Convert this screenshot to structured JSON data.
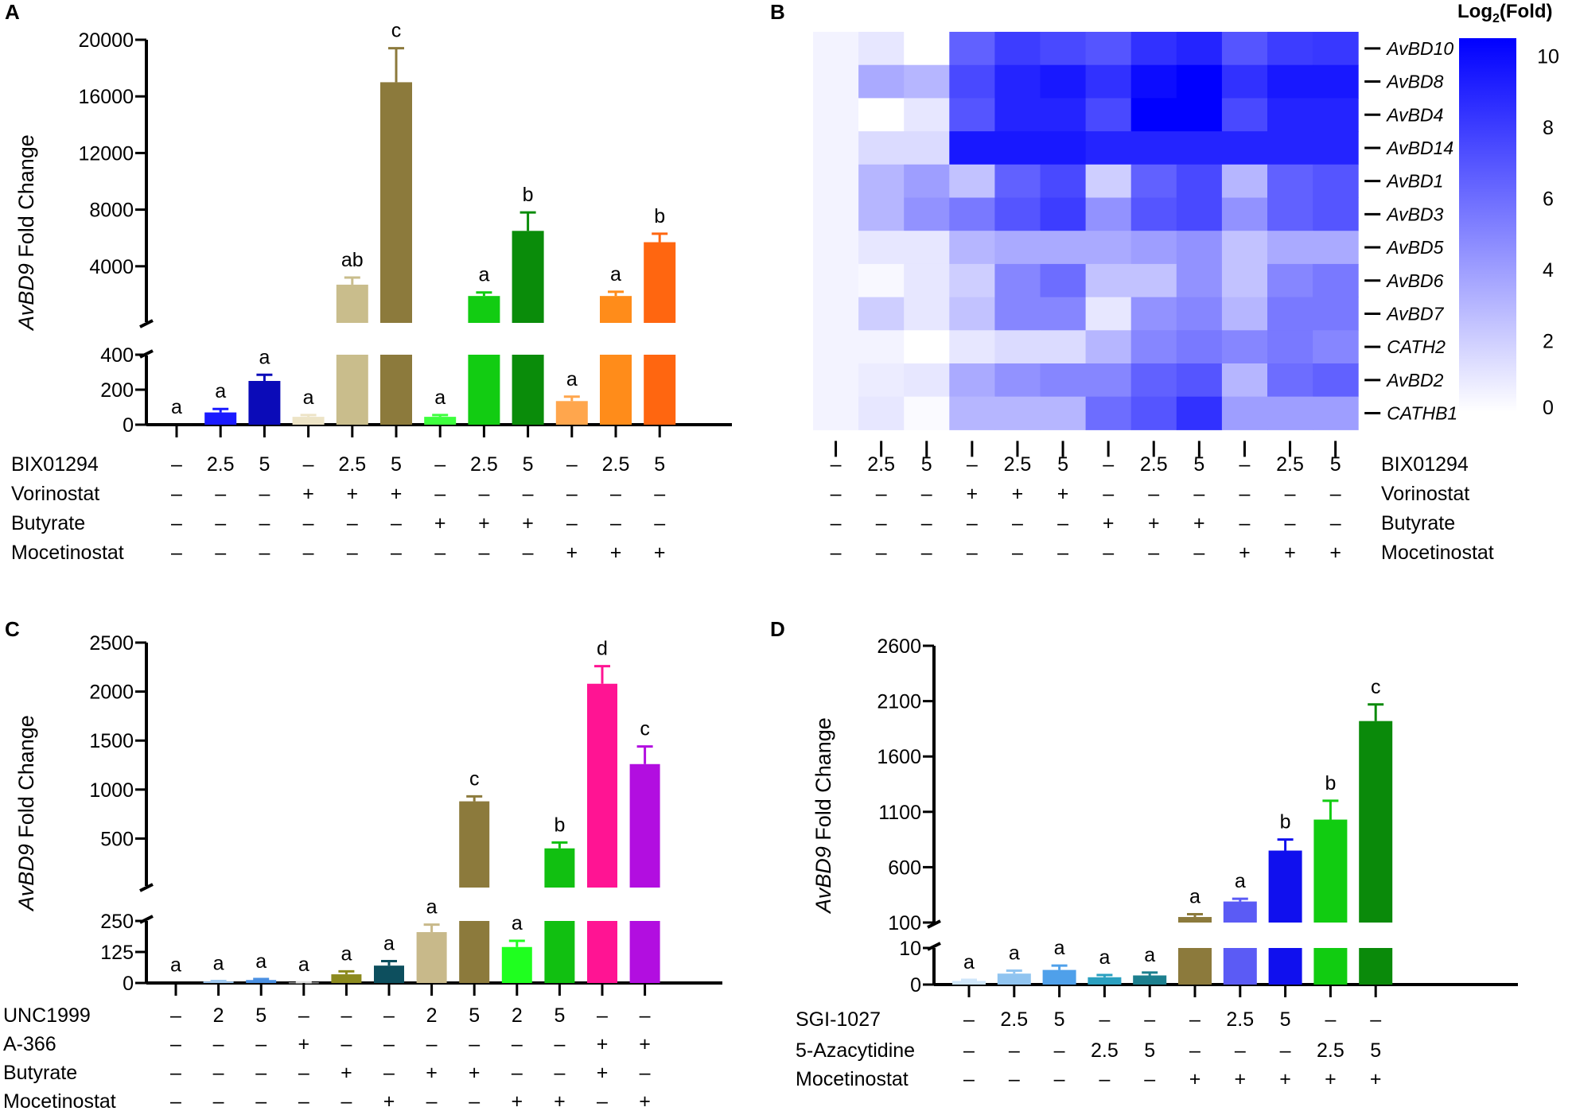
{
  "panel_labels": {
    "a": "A",
    "b": "B",
    "c": "C",
    "d": "D"
  },
  "chart_data": [
    {
      "panel": "A",
      "type": "bar",
      "ylabel_italic": "AvBD9",
      "ylabel_rest": " Fold Change",
      "axis_break": true,
      "lower_ylim": [
        0,
        400
      ],
      "lower_ticks": [
        "0",
        "200",
        "400"
      ],
      "lower_tick_values": [
        0,
        200,
        400
      ],
      "upper_ylim": [
        0,
        20000
      ],
      "upper_ticks": [
        "4000",
        "8000",
        "12000",
        "16000",
        "20000"
      ],
      "upper_tick_values": [
        4000,
        8000,
        12000,
        16000,
        20000
      ],
      "values": [
        1,
        70,
        250,
        45,
        2700,
        17000,
        45,
        1900,
        6500,
        135,
        1900,
        5700
      ],
      "errors": [
        0,
        20,
        35,
        10,
        500,
        2400,
        10,
        250,
        1300,
        25,
        300,
        600
      ],
      "colors": [
        "#111111",
        "#1a1aff",
        "#0b0bb8",
        "#ede4c6",
        "#c9bd8c",
        "#8c7a3c",
        "#3dff3d",
        "#12cc12",
        "#0a8c0a",
        "#ffa64d",
        "#ff8c1a",
        "#ff6610"
      ],
      "significance": [
        "a",
        "a",
        "a",
        "a",
        "ab",
        "c",
        "a",
        "a",
        "b",
        "a",
        "a",
        "b"
      ],
      "treatments": [
        {
          "name": "BIX01294",
          "values": [
            "–",
            "2.5",
            "5",
            "–",
            "2.5",
            "5",
            "–",
            "2.5",
            "5",
            "–",
            "2.5",
            "5"
          ]
        },
        {
          "name": "Vorinostat",
          "values": [
            "–",
            "–",
            "–",
            "+",
            "+",
            "+",
            "–",
            "–",
            "–",
            "–",
            "–",
            "–"
          ]
        },
        {
          "name": "Butyrate",
          "values": [
            "–",
            "–",
            "–",
            "–",
            "–",
            "–",
            "+",
            "+",
            "+",
            "–",
            "–",
            "–"
          ]
        },
        {
          "name": "Mocetinostat",
          "values": [
            "–",
            "–",
            "–",
            "–",
            "–",
            "–",
            "–",
            "–",
            "–",
            "+",
            "+",
            "+"
          ]
        }
      ]
    },
    {
      "panel": "B",
      "type": "heatmap",
      "colorbar_title": "Log",
      "colorbar_sub": "2",
      "colorbar_title_end": "(Fold)",
      "colorbar_ticks": [
        "0",
        "2",
        "4",
        "6",
        "8",
        "10"
      ],
      "colorbar_tick_values": [
        0,
        2,
        4,
        6,
        8,
        10
      ],
      "vmin": 0,
      "vmax": 10.5,
      "rows": [
        "AvBD10",
        "AvBD8",
        "AvBD4",
        "AvBD14",
        "AvBD1",
        "AvBD3",
        "AvBD5",
        "AvBD6",
        "AvBD7",
        "CATH2",
        "AvBD2",
        "CATHB1"
      ],
      "matrix": [
        [
          0.5,
          1.0,
          0.0,
          6.5,
          8.0,
          7.5,
          7.0,
          8.5,
          9.0,
          7.0,
          8.0,
          8.2
        ],
        [
          0.5,
          3.5,
          3.0,
          7.5,
          9.0,
          9.5,
          8.5,
          10.0,
          10.5,
          8.5,
          9.5,
          9.5
        ],
        [
          0.5,
          0.0,
          1.0,
          7.0,
          9.0,
          9.0,
          7.5,
          10.5,
          10.5,
          7.5,
          9.0,
          9.0
        ],
        [
          0.5,
          1.5,
          1.5,
          9.5,
          9.5,
          9.5,
          9.0,
          9.0,
          9.0,
          9.0,
          9.0,
          9.0
        ],
        [
          0.5,
          3.0,
          4.0,
          2.5,
          6.5,
          7.5,
          2.0,
          6.5,
          7.5,
          3.0,
          6.5,
          7.0
        ],
        [
          0.5,
          3.0,
          4.5,
          5.5,
          7.0,
          8.0,
          4.5,
          7.0,
          7.5,
          4.5,
          6.5,
          7.0
        ],
        [
          0.5,
          1.0,
          1.0,
          3.0,
          3.5,
          3.5,
          3.5,
          4.0,
          4.5,
          2.5,
          3.5,
          3.5
        ],
        [
          0.5,
          0.3,
          1.0,
          2.0,
          5.0,
          6.0,
          2.5,
          2.5,
          4.5,
          2.5,
          5.0,
          5.5
        ],
        [
          0.5,
          2.0,
          1.0,
          2.5,
          5.0,
          5.0,
          1.0,
          4.5,
          5.0,
          3.0,
          5.5,
          5.5
        ],
        [
          0.5,
          0.5,
          0.0,
          1.0,
          1.5,
          1.5,
          3.0,
          5.0,
          5.5,
          5.0,
          5.5,
          5.0
        ],
        [
          0.5,
          0.8,
          1.0,
          3.5,
          4.5,
          5.0,
          5.0,
          6.5,
          7.0,
          3.0,
          6.0,
          6.5
        ],
        [
          0.5,
          1.0,
          0.2,
          3.0,
          3.0,
          3.0,
          6.0,
          7.0,
          8.5,
          4.0,
          4.0,
          4.0
        ]
      ],
      "treatments": [
        {
          "name": "BIX01294",
          "values": [
            "–",
            "2.5",
            "5",
            "–",
            "2.5",
            "5",
            "–",
            "2.5",
            "5",
            "–",
            "2.5",
            "5"
          ]
        },
        {
          "name": "Vorinostat",
          "values": [
            "–",
            "–",
            "–",
            "+",
            "+",
            "+",
            "–",
            "–",
            "–",
            "–",
            "–",
            "–"
          ]
        },
        {
          "name": "Butyrate",
          "values": [
            "–",
            "–",
            "–",
            "–",
            "–",
            "–",
            "+",
            "+",
            "+",
            "–",
            "–",
            "–"
          ]
        },
        {
          "name": "Mocetinostat",
          "values": [
            "–",
            "–",
            "–",
            "–",
            "–",
            "–",
            "–",
            "–",
            "–",
            "+",
            "+",
            "+"
          ]
        }
      ]
    },
    {
      "panel": "C",
      "type": "bar",
      "ylabel_italic": "AvBD9",
      "ylabel_rest": " Fold Change",
      "axis_break": true,
      "lower_ylim": [
        0,
        250
      ],
      "lower_ticks": [
        "0",
        "125",
        "250"
      ],
      "lower_tick_values": [
        0,
        125,
        250
      ],
      "upper_ylim": [
        0,
        2500
      ],
      "upper_ticks": [
        "500",
        "1000",
        "1500",
        "2000",
        "2500"
      ],
      "upper_tick_values": [
        500,
        1000,
        1500,
        2000,
        2500
      ],
      "values": [
        1,
        6,
        12,
        2,
        35,
        70,
        205,
        880,
        145,
        400,
        2080,
        1260
      ],
      "errors": [
        0,
        2,
        4,
        1,
        12,
        18,
        30,
        50,
        25,
        60,
        180,
        180
      ],
      "colors": [
        "#111111",
        "#9ec8f0",
        "#4a90e2",
        "#dddddd",
        "#8c8a1e",
        "#0d4f5e",
        "#c8b98a",
        "#8c7a3c",
        "#1fff1f",
        "#11c011",
        "#ff1493",
        "#b20ee0"
      ],
      "significance": [
        "a",
        "a",
        "a",
        "a",
        "a",
        "a",
        "a",
        "c",
        "a",
        "b",
        "d",
        "c"
      ],
      "treatments": [
        {
          "name": "UNC1999",
          "values": [
            "–",
            "2",
            "5",
            "–",
            "–",
            "–",
            "2",
            "5",
            "2",
            "5",
            "–",
            "–"
          ]
        },
        {
          "name": "A-366",
          "values": [
            "–",
            "–",
            "–",
            "+",
            "–",
            "–",
            "–",
            "–",
            "–",
            "–",
            "+",
            "+"
          ]
        },
        {
          "name": "Butyrate",
          "values": [
            "–",
            "–",
            "–",
            "–",
            "+",
            "–",
            "+",
            "+",
            "–",
            "–",
            "+",
            "–"
          ]
        },
        {
          "name": "Mocetinostat",
          "values": [
            "–",
            "–",
            "–",
            "–",
            "–",
            "+",
            "–",
            "–",
            "+",
            "+",
            "–",
            "+"
          ]
        }
      ]
    },
    {
      "panel": "D",
      "type": "bar",
      "ylabel_italic": "AvBD9",
      "ylabel_rest": " Fold Change",
      "axis_break": true,
      "lower_ylim": [
        0,
        10
      ],
      "lower_ticks": [
        "0",
        "10"
      ],
      "lower_tick_values": [
        0,
        10
      ],
      "upper_ylim": [
        100,
        2600
      ],
      "upper_ticks": [
        "100",
        "600",
        "1100",
        "1600",
        "2100",
        "2600"
      ],
      "upper_tick_values": [
        100,
        600,
        1100,
        1600,
        2100,
        2600
      ],
      "values": [
        1,
        3,
        4,
        2,
        2.5,
        150,
        290,
        750,
        1030,
        1920
      ],
      "errors": [
        0.3,
        0.8,
        1.2,
        0.6,
        0.8,
        25,
        25,
        100,
        170,
        150
      ],
      "colors": [
        "#cfe6fa",
        "#90c4f0",
        "#4fa0ea",
        "#2aa0c0",
        "#1c7f8e",
        "#8c7a3c",
        "#5b5bf5",
        "#1010ee",
        "#11cc11",
        "#0a8a0a"
      ],
      "significance": [
        "a",
        "a",
        "a",
        "a",
        "a",
        "a",
        "a",
        "b",
        "b",
        "c"
      ],
      "treatments": [
        {
          "name": "SGI-1027",
          "values": [
            "–",
            "2.5",
            "5",
            "–",
            "–",
            "–",
            "2.5",
            "5",
            "–",
            "–"
          ]
        },
        {
          "name": "5-Azacytidine",
          "values": [
            "–",
            "–",
            "–",
            "2.5",
            "5",
            "–",
            "–",
            "–",
            "2.5",
            "5"
          ]
        },
        {
          "name": "Mocetinostat",
          "values": [
            "–",
            "–",
            "–",
            "–",
            "–",
            "+",
            "+",
            "+",
            "+",
            "+"
          ]
        }
      ]
    }
  ]
}
